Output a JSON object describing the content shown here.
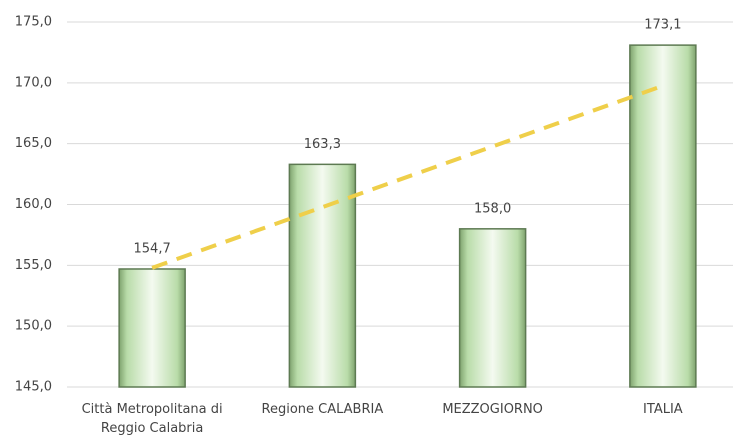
{
  "chart_data": {
    "type": "bar",
    "categories": [
      "Città Metropolitana di Reggio Calabria",
      "Regione CALABRIA",
      "MEZZOGIORNO",
      "ITALIA"
    ],
    "values": [
      154.7,
      163.3,
      158.0,
      173.1
    ],
    "value_labels": [
      "154,7",
      "163,3",
      "158,0",
      "173,1"
    ],
    "color": "#b9dca9",
    "ylim": [
      145,
      175
    ],
    "yticks": [
      {
        "value": 145,
        "label": "145,0"
      },
      {
        "value": 150,
        "label": "150,0"
      },
      {
        "value": 155,
        "label": "155,0"
      },
      {
        "value": 160,
        "label": "160,0"
      },
      {
        "value": 165,
        "label": "165,0"
      },
      {
        "value": 170,
        "label": "170,0"
      },
      {
        "value": 175,
        "label": "175,0"
      }
    ],
    "grid": true,
    "trendline": {
      "type": "linear",
      "color": "#efcf4a"
    }
  }
}
